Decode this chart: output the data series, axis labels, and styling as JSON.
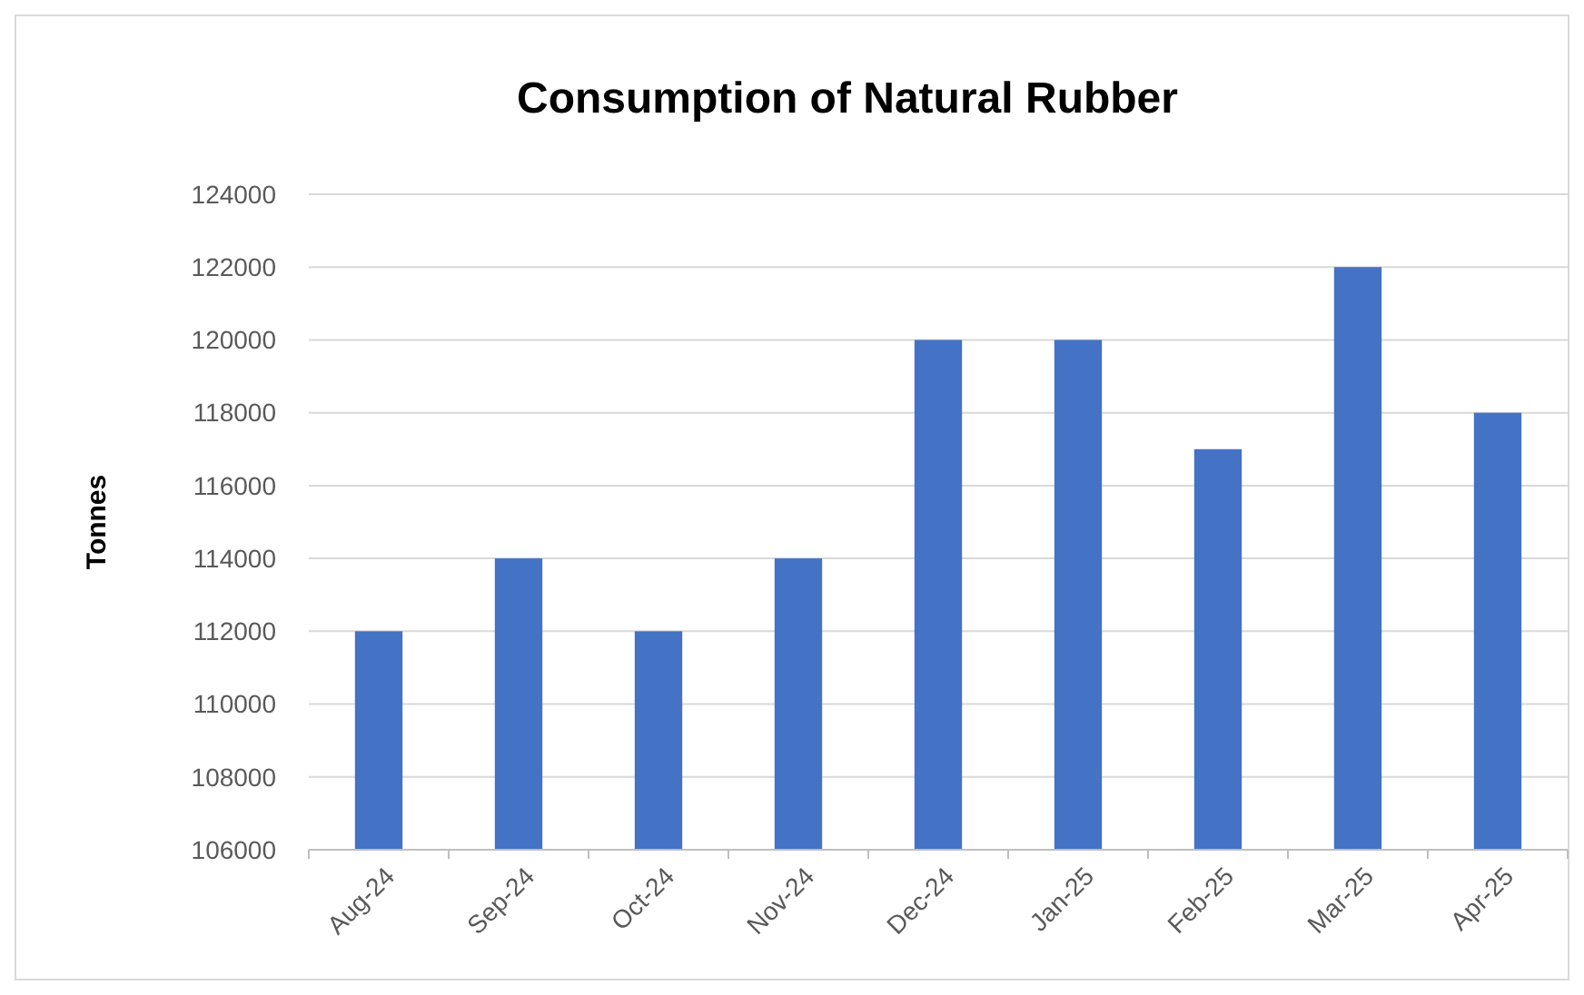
{
  "chart_data": {
    "type": "bar",
    "title": "Consumption of Natural Rubber",
    "ylabel": "Tonnes",
    "categories": [
      "Aug-24",
      "Sep-24",
      "Oct-24",
      "Nov-24",
      "Dec-24",
      "Jan-25",
      "Feb-25",
      "Mar-25",
      "Apr-25"
    ],
    "values": [
      112000,
      114000,
      112000,
      114000,
      120000,
      120000,
      117000,
      122000,
      118000
    ],
    "color": "#4472c4",
    "ylim": [
      106000,
      124000
    ],
    "yticks": [
      106000,
      108000,
      110000,
      112000,
      114000,
      116000,
      118000,
      120000,
      122000,
      124000
    ],
    "grid": "y"
  }
}
